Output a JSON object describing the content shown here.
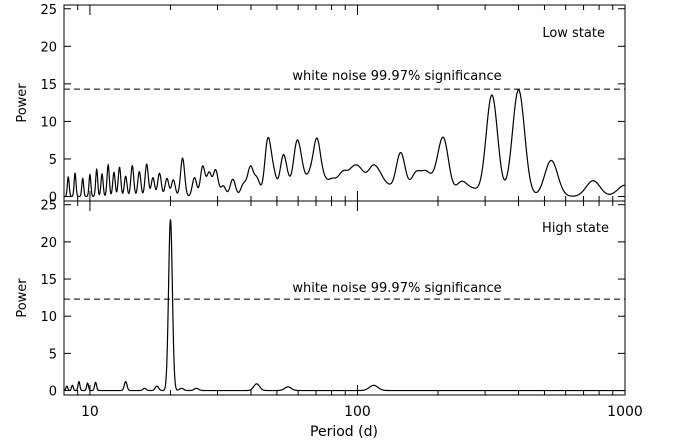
{
  "chart_data": [
    {
      "type": "line",
      "panel_label": "Low state",
      "xlabel": "",
      "ylabel": "Power",
      "xscale": "log",
      "xlim": [
        8,
        1000
      ],
      "ylim": [
        -0.6,
        25.5
      ],
      "yticks": [
        0,
        5,
        10,
        15,
        20,
        25
      ],
      "threshold": {
        "value": 14.3,
        "label": "white noise 99.97% significance"
      },
      "peaks": [
        [
          8.3,
          2.6
        ],
        [
          8.8,
          3.1
        ],
        [
          9.4,
          2.4
        ],
        [
          10.0,
          2.9
        ],
        [
          10.6,
          3.6
        ],
        [
          11.1,
          3.0
        ],
        [
          11.7,
          4.2
        ],
        [
          12.3,
          3.2
        ],
        [
          12.9,
          3.9
        ],
        [
          13.6,
          2.7
        ],
        [
          14.4,
          4.1
        ],
        [
          15.3,
          3.3
        ],
        [
          16.3,
          4.3
        ],
        [
          17.2,
          2.5
        ],
        [
          18.2,
          3.1
        ],
        [
          19.4,
          2.4
        ],
        [
          20.5,
          2.2
        ],
        [
          22.2,
          5.1
        ],
        [
          24.6,
          2.5
        ],
        [
          26.4,
          4.0
        ],
        [
          27.9,
          3.1
        ],
        [
          29.5,
          3.5
        ],
        [
          31.5,
          1.4
        ],
        [
          34.2,
          2.3
        ],
        [
          37.5,
          1.6
        ],
        [
          39.8,
          3.8
        ],
        [
          42.1,
          2.3
        ],
        [
          46.2,
          7.2
        ],
        [
          48.5,
          2.9
        ],
        [
          52.8,
          5.2
        ],
        [
          55.3,
          1.2
        ],
        [
          59.2,
          6.2
        ],
        [
          61.8,
          3.0
        ],
        [
          66.2,
          2.4
        ],
        [
          70.5,
          7.2
        ],
        [
          75.0,
          1.8
        ],
        [
          80.2,
          1.9
        ],
        [
          85.3,
          1.6
        ],
        [
          89.5,
          2.4
        ],
        [
          95.5,
          2.7
        ],
        [
          101.0,
          2.8
        ],
        [
          107.0,
          1.7
        ],
        [
          114.0,
          3.1
        ],
        [
          121.0,
          2.3
        ],
        [
          130.0,
          1.2
        ],
        [
          145.0,
          5.8
        ],
        [
          165.0,
          2.9
        ],
        [
          180.0,
          2.9
        ],
        [
          197.0,
          1.8
        ],
        [
          210.0,
          7.2
        ],
        [
          245.0,
          1.9
        ],
        [
          270.0,
          0.9
        ],
        [
          318.0,
          13.5
        ],
        [
          400.0,
          14.2
        ],
        [
          530.0,
          4.8
        ],
        [
          760.0,
          2.1
        ],
        [
          1000.0,
          1.5
        ]
      ]
    },
    {
      "type": "line",
      "panel_label": "High state",
      "xlabel": "Period (d)",
      "ylabel": "Power",
      "xscale": "log",
      "xlim": [
        8,
        1000
      ],
      "ylim": [
        -0.6,
        25.5
      ],
      "yticks": [
        0,
        5,
        10,
        15,
        20,
        25
      ],
      "xticks": [
        10,
        100,
        1000
      ],
      "threshold": {
        "value": 12.3,
        "label": "white noise 99.97% significance"
      },
      "peaks": [
        [
          8.2,
          0.6
        ],
        [
          8.6,
          0.7
        ],
        [
          9.1,
          1.2
        ],
        [
          9.8,
          1.0
        ],
        [
          10.5,
          1.1
        ],
        [
          13.6,
          1.2
        ],
        [
          16.0,
          0.3
        ],
        [
          17.8,
          0.6
        ],
        [
          20.0,
          23.0
        ],
        [
          22.0,
          0.3
        ],
        [
          25.0,
          0.3
        ],
        [
          42.0,
          0.9
        ],
        [
          55.0,
          0.5
        ],
        [
          115.0,
          0.7
        ]
      ]
    }
  ]
}
